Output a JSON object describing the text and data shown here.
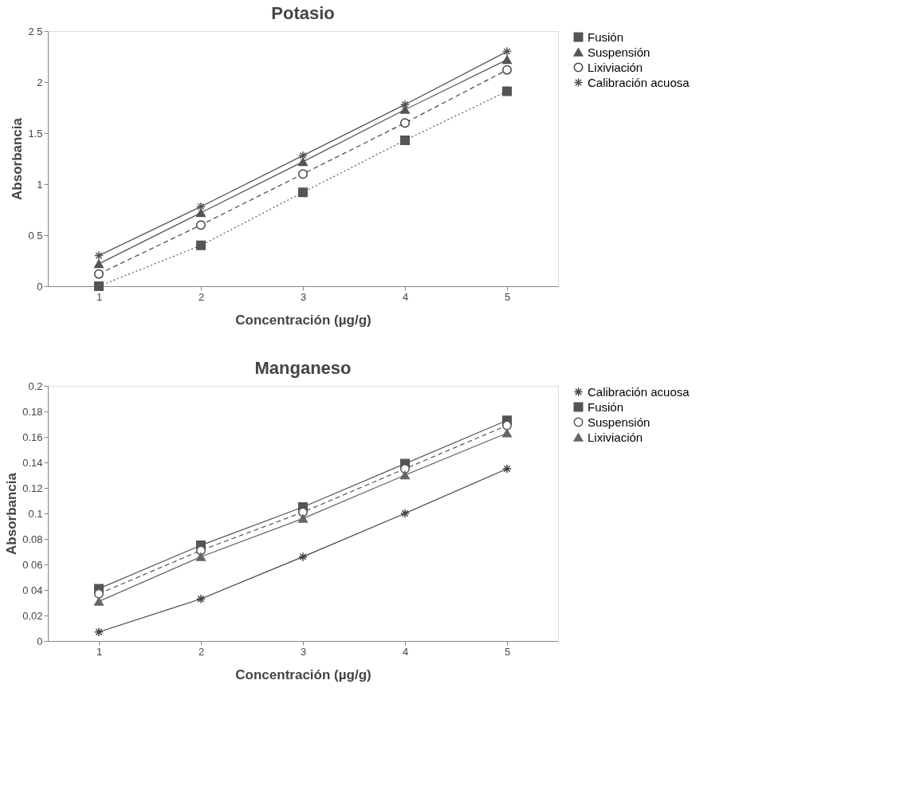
{
  "chart_data": [
    {
      "type": "line",
      "title": "Potasio",
      "xlabel": "Concentración (µg/g)",
      "ylabel": "Absorbancia",
      "categories": [
        "1",
        "2",
        "3",
        "4",
        "5"
      ],
      "ylim": [
        0,
        2.5
      ],
      "yticks": [
        0,
        {
          "value": 0.5,
          "label": "0 5"
        },
        1,
        1.5,
        2,
        {
          "value": 2.5,
          "label": "2 5"
        }
      ],
      "grid": false,
      "legend": "right",
      "series": [
        {
          "name": "Fusión",
          "color": "#555555",
          "marker": "square",
          "line_style": "dotted",
          "values": [
            0,
            0.4,
            0.92,
            1.43,
            1.91
          ]
        },
        {
          "name": "Suspensión",
          "color": "#555555",
          "marker": "triangle",
          "line_style": "solid",
          "values": [
            0.22,
            0.72,
            1.22,
            1.73,
            2.22
          ]
        },
        {
          "name": "Lixiviación",
          "color": "#444444",
          "marker": "circle",
          "line_style": "dashed",
          "values": [
            0.12,
            0.6,
            1.1,
            1.6,
            2.12
          ]
        },
        {
          "name": "Calibración acuosa",
          "color": "#555555",
          "marker": "cross",
          "line_style": "solid",
          "values": [
            0.3,
            0.78,
            1.28,
            1.78,
            2.3
          ]
        }
      ]
    },
    {
      "type": "line",
      "title": "Manganeso",
      "xlabel": "Concentración (µg/g)",
      "ylabel": "Absorbancia",
      "categories": [
        "1",
        "2",
        "3",
        "4",
        "5"
      ],
      "ylim": [
        0,
        0.2
      ],
      "yticks": [
        0,
        0.02,
        {
          "value": 0.04,
          "label": "0 04"
        },
        {
          "value": 0.06,
          "label": "0 06"
        },
        0.08,
        0.1,
        0.12,
        0.14,
        0.16,
        0.18,
        0.2
      ],
      "grid": false,
      "legend": "right",
      "series": [
        {
          "name": "Calibración acuosa",
          "color": "#444444",
          "marker": "cross",
          "line_style": "solid",
          "values": [
            0.007,
            0.033,
            0.066,
            0.1,
            0.135
          ]
        },
        {
          "name": "Fusión",
          "color": "#555555",
          "marker": "square",
          "line_style": "solid",
          "values": [
            0.041,
            0.075,
            0.105,
            0.139,
            0.173
          ]
        },
        {
          "name": "Suspensión",
          "color": "#555555",
          "marker": "circle",
          "line_style": "dashed",
          "values": [
            0.037,
            0.071,
            0.101,
            0.135,
            0.169
          ]
        },
        {
          "name": "Lixiviación",
          "color": "#666666",
          "marker": "triangle",
          "line_style": "solid",
          "values": [
            0.031,
            0.066,
            0.096,
            0.13,
            0.163
          ]
        }
      ]
    }
  ]
}
